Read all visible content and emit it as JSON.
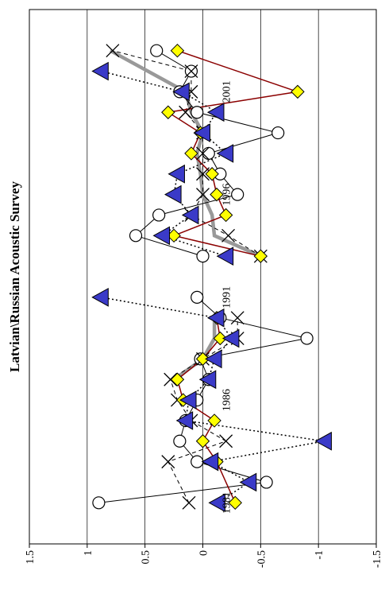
{
  "chart_data": {
    "type": "line",
    "title": "Latvian\\Russian Acoustic Survey",
    "orientation": "rotated-90-ccw",
    "ylim": [
      -1.5,
      1.5
    ],
    "y_ticks": [
      {
        "value": 1.5,
        "label": "1.5"
      },
      {
        "value": 1,
        "label": "1"
      },
      {
        "value": 0.5,
        "label": "0.5"
      },
      {
        "value": 0,
        "label": "0"
      },
      {
        "value": -0.5,
        "label": "-0.5"
      },
      {
        "value": -1,
        "label": "-1"
      },
      {
        "value": -1.5,
        "label": "-1.5"
      }
    ],
    "grid": true,
    "x_range": [
      1979,
      2005
    ],
    "year_labels": [
      1981,
      1986,
      1991,
      1996,
      2001
    ],
    "gap_after": 1992,
    "series": [
      {
        "key": "circle",
        "marker": "circle",
        "fill": "#ffffff",
        "stroke": "#000000",
        "line": "#000000",
        "line_style": "solid",
        "line_width": 1,
        "points": [
          [
            1981,
            0.9
          ],
          [
            1982,
            -0.55
          ],
          [
            1983,
            0.05
          ],
          [
            1984,
            0.2
          ],
          [
            1985,
            0.15
          ],
          [
            1986,
            0.05
          ],
          [
            1987,
            -0.05
          ],
          [
            1988,
            0.02
          ],
          [
            1989,
            -0.9
          ],
          [
            1990,
            -0.15
          ],
          [
            1991,
            0.05
          ],
          [
            1993,
            0.0
          ],
          [
            1994,
            0.58
          ],
          [
            1995,
            0.38
          ],
          [
            1996,
            -0.3
          ],
          [
            1997,
            -0.15
          ],
          [
            1998,
            -0.05
          ],
          [
            1999,
            -0.65
          ],
          [
            2000,
            0.05
          ],
          [
            2001,
            0.2
          ],
          [
            2002,
            0.1
          ],
          [
            2003,
            0.4
          ]
        ]
      },
      {
        "key": "cross",
        "marker": "cross",
        "fill": "none",
        "stroke": "#000000",
        "line": "#000000",
        "line_style": "dashed",
        "line_width": 1,
        "points": [
          [
            1981,
            0.12
          ],
          [
            1983,
            0.3
          ],
          [
            1984,
            -0.2
          ],
          [
            1985,
            0.1
          ],
          [
            1986,
            0.22
          ],
          [
            1987,
            0.28
          ],
          [
            1988,
            0.0
          ],
          [
            1989,
            -0.3
          ],
          [
            1990,
            -0.3
          ],
          [
            1993,
            -0.5
          ],
          [
            1994,
            -0.22
          ],
          [
            1995,
            0.1
          ],
          [
            1996,
            0.0
          ],
          [
            1997,
            0.0
          ],
          [
            1998,
            0.0
          ],
          [
            1999,
            0.0
          ],
          [
            2000,
            0.15
          ],
          [
            2001,
            0.1
          ],
          [
            2002,
            0.1
          ],
          [
            2003,
            0.78
          ]
        ]
      },
      {
        "key": "diamond",
        "marker": "diamond",
        "fill": "#ffff00",
        "stroke": "#000000",
        "line": "#8b0000",
        "line_style": "solid",
        "line_width": 1.5,
        "points": [
          [
            1981,
            -0.28
          ],
          [
            1983,
            -0.12
          ],
          [
            1984,
            0.0
          ],
          [
            1985,
            -0.1
          ],
          [
            1986,
            0.17
          ],
          [
            1987,
            0.22
          ],
          [
            1988,
            0.0
          ],
          [
            1989,
            -0.15
          ],
          [
            1990,
            -0.12
          ],
          [
            1993,
            -0.5
          ],
          [
            1994,
            0.25
          ],
          [
            1995,
            -0.2
          ],
          [
            1996,
            -0.12
          ],
          [
            1997,
            -0.08
          ],
          [
            1998,
            0.1
          ],
          [
            1999,
            0.02
          ],
          [
            2000,
            0.3
          ],
          [
            2001,
            -0.82
          ],
          [
            2003,
            0.22
          ]
        ]
      },
      {
        "key": "triangle",
        "marker": "triangle",
        "fill": "#3a3ac8",
        "stroke": "#000000",
        "line": "#000000",
        "line_style": "dotted",
        "line_width": 1.5,
        "points": [
          [
            1981,
            -0.13
          ],
          [
            1982,
            -0.4
          ],
          [
            1983,
            -0.07
          ],
          [
            1984,
            -1.05
          ],
          [
            1985,
            0.15
          ],
          [
            1986,
            0.12
          ],
          [
            1987,
            -0.05
          ],
          [
            1988,
            -0.1
          ],
          [
            1989,
            -0.25
          ],
          [
            1990,
            -0.12
          ],
          [
            1991,
            0.88
          ],
          [
            1993,
            -0.2
          ],
          [
            1994,
            0.35
          ],
          [
            1995,
            0.1
          ],
          [
            1996,
            0.25
          ],
          [
            1997,
            0.22
          ],
          [
            1998,
            -0.2
          ],
          [
            1999,
            0.0
          ],
          [
            2000,
            -0.12
          ],
          [
            2001,
            0.18
          ],
          [
            2002,
            0.88
          ]
        ]
      },
      {
        "key": "envelope",
        "marker": "none",
        "fill": "none",
        "stroke": "none",
        "line": "#999999",
        "line_style": "solid",
        "line_width": 4.5,
        "points": [
          [
            1987,
            0.25
          ],
          [
            1988,
            0.0
          ],
          [
            1989,
            -0.1
          ],
          [
            1990,
            -0.1
          ],
          [
            1993,
            -0.5
          ],
          [
            1994,
            -0.1
          ],
          [
            1995,
            -0.08
          ],
          [
            1996,
            0.0
          ],
          [
            1997,
            0.02
          ],
          [
            1998,
            0.05
          ],
          [
            1999,
            0.0
          ],
          [
            2000,
            0.1
          ],
          [
            2001,
            0.15
          ],
          [
            2003,
            0.8
          ]
        ]
      }
    ]
  }
}
